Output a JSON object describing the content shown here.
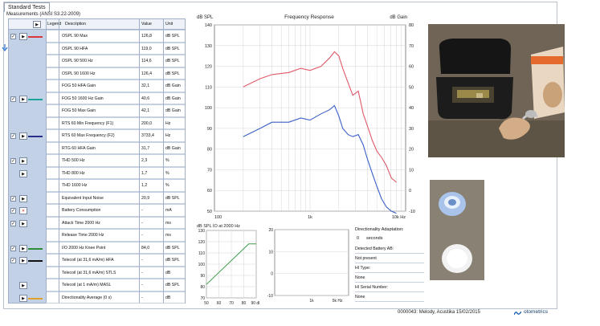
{
  "tab_label": "Standard Tests",
  "panel_title": "Measurements (ANSI S3.22-2009)",
  "table": {
    "headers": {
      "legend": "Legend",
      "description": "Description",
      "value": "Value",
      "unit": "Unit"
    },
    "rows": [
      {
        "desc": "OSPL 90 Max",
        "value": "126,8",
        "unit": "dB SPL",
        "checked": true,
        "legend": "#d9363e",
        "icon": "play"
      },
      {
        "desc": "OSPL 90 HFA",
        "value": "119,0",
        "unit": "dB SPL",
        "checked": false,
        "legend": "",
        "icon": ""
      },
      {
        "desc": "OSPL 90 500 Hz",
        "value": "114,6",
        "unit": "dB SPL",
        "checked": false,
        "legend": "",
        "icon": ""
      },
      {
        "desc": "OSPL 90 1600 Hz",
        "value": "126,4",
        "unit": "dB SPL",
        "checked": false,
        "legend": "",
        "icon": ""
      },
      {
        "desc": "FOG 50 HFA Gain",
        "value": "32,1",
        "unit": "dB Gain",
        "checked": false,
        "legend": "",
        "icon": ""
      },
      {
        "desc": "FOG 50 1600 Hz Gain",
        "value": "40,6",
        "unit": "dB Gain",
        "checked": true,
        "legend": "#1aa39a",
        "icon": "play"
      },
      {
        "desc": "FOG 50 Max Gain",
        "value": "42,1",
        "unit": "dB Gain",
        "checked": false,
        "legend": "",
        "icon": ""
      },
      {
        "desc": "RTS 60 Min Frequency (F1)",
        "value": "200,0",
        "unit": "Hz",
        "checked": false,
        "legend": "",
        "icon": ""
      },
      {
        "desc": "RTS 60 Max Frequency (F2)",
        "value": "3733,4",
        "unit": "Hz",
        "checked": true,
        "legend": "#2b2f8c",
        "icon": "play"
      },
      {
        "desc": "RTG 60 HFA Gain",
        "value": "31,7",
        "unit": "dB Gain",
        "checked": false,
        "legend": "",
        "icon": ""
      },
      {
        "desc": "THD 500 Hz",
        "value": "2,3",
        "unit": "%",
        "checked": true,
        "legend": "",
        "icon": "play"
      },
      {
        "desc": "THD 800 Hz",
        "value": "1,7",
        "unit": "%",
        "checked": false,
        "legend": "",
        "icon": "play"
      },
      {
        "desc": "THD 1600 Hz",
        "value": "1,2",
        "unit": "%",
        "checked": false,
        "legend": "",
        "icon": ""
      },
      {
        "desc": "Equivalent Input Noise",
        "value": "20,9",
        "unit": "dB SPL",
        "checked": true,
        "legend": "",
        "icon": "play"
      },
      {
        "desc": "Battery Consumption",
        "value": "-",
        "unit": "mA",
        "checked": true,
        "legend": "",
        "icon": "stop"
      },
      {
        "desc": "Attack Time 2000 Hz",
        "value": "-",
        "unit": "ms",
        "checked": true,
        "legend": "",
        "icon": "play"
      },
      {
        "desc": "Release Time 2000 Hz",
        "value": "-",
        "unit": "ms",
        "checked": false,
        "legend": "",
        "icon": ""
      },
      {
        "desc": "I/O 2000 Hz Knee Point",
        "value": "84,0",
        "unit": "dB SPL",
        "checked": true,
        "legend": "#2e8b3a",
        "icon": "play"
      },
      {
        "desc": "Telecoil (at 31,6 mA/m) HFA",
        "value": "-",
        "unit": "dB SPL",
        "checked": true,
        "legend": "#111111",
        "icon": "play"
      },
      {
        "desc": "Telecoil (at 31,6 mA/m) STLS",
        "value": "-",
        "unit": "dB",
        "checked": false,
        "legend": "",
        "icon": ""
      },
      {
        "desc": "Telecoil (at 1 mA/m) MASL",
        "value": "-",
        "unit": "dB SPL",
        "checked": false,
        "legend": "",
        "icon": "play"
      },
      {
        "desc": "Directionality Average (0 s)",
        "value": "-",
        "unit": "dB",
        "checked": false,
        "legend": "#e0a02a",
        "icon": "play"
      }
    ]
  },
  "freq_chart": {
    "title": "Frequency Response",
    "left_unit": "dB SPL",
    "right_unit": "dB Gain",
    "x_ticks": [
      "100",
      "1k",
      "10k Hz"
    ]
  },
  "chart_data": [
    {
      "type": "line",
      "title": "Frequency Response",
      "ylabel": "dB SPL",
      "y2label": "dB Gain",
      "xscale": "log",
      "xlim": [
        100,
        10000
      ],
      "ylim": [
        50,
        140
      ],
      "y2lim": [
        -10,
        80
      ],
      "x_tick_labels": [
        "100",
        "1k",
        "10k Hz"
      ],
      "y_ticks": [
        50,
        60,
        70,
        80,
        90,
        100,
        110,
        120,
        130,
        140
      ],
      "y2_ticks": [
        -10,
        0,
        10,
        20,
        30,
        40,
        50,
        60,
        70,
        80
      ],
      "grid": true,
      "series": [
        {
          "color": "#e05a6a",
          "x": [
            200,
            300,
            400,
            600,
            800,
            1000,
            1300,
            1600,
            1800,
            2000,
            2200,
            2500,
            2800,
            3200,
            3600,
            4000,
            4500,
            5000,
            5600,
            6300,
            7100,
            8000
          ],
          "y": [
            110,
            114,
            116,
            117,
            119,
            118,
            120,
            124,
            127,
            125,
            119,
            112,
            106,
            108,
            97,
            91,
            84,
            79,
            76,
            72,
            66,
            64
          ]
        },
        {
          "color": "#3a5fc8",
          "x": [
            200,
            300,
            400,
            600,
            800,
            1000,
            1300,
            1600,
            1800,
            2000,
            2200,
            2500,
            2800,
            3200,
            3600,
            4000,
            4500,
            5000,
            5600,
            6300,
            7100,
            8000
          ],
          "y": [
            86,
            90,
            93,
            93,
            95,
            94,
            97,
            99,
            101,
            96,
            90,
            87,
            86,
            87,
            82,
            75,
            68,
            62,
            56,
            52,
            50,
            49
          ]
        }
      ]
    },
    {
      "type": "line",
      "title": "dB SPL IO at 2000 Hz",
      "xlim": [
        50,
        90
      ],
      "ylim": [
        70,
        130
      ],
      "x_tick_labels": [
        "50",
        "60",
        "70",
        "80",
        "90 dB"
      ],
      "y_ticks": [
        70,
        80,
        90,
        100,
        110,
        120,
        130
      ],
      "grid": true,
      "series": [
        {
          "color": "#3a9a4a",
          "x": [
            50,
            84,
            90
          ],
          "y": [
            82,
            118,
            118
          ]
        }
      ]
    },
    {
      "type": "line",
      "title": "",
      "xscale": "log",
      "xlim": [
        100,
        10000
      ],
      "ylim": [
        -10,
        20
      ],
      "x_tick_labels": [
        "1k",
        "5k Hz"
      ],
      "y_ticks": [
        -10,
        0,
        10,
        20
      ],
      "grid": true,
      "series": []
    }
  ],
  "io_chart": {
    "title": "dB SPL IO at 2000 Hz"
  },
  "info": {
    "directionality_label": "Directionality Adaptation:",
    "directionality_value": "0",
    "directionality_unit": "seconds",
    "battery_label": "Detected Battery AB:",
    "battery_value": "Not present",
    "hi_type_label": "HI Type:",
    "hi_type_value": "None",
    "serial_label": "HI Serial Number:",
    "serial_value": "None"
  },
  "status": "0000043: Melody, Acustika   15/02/2015",
  "logo": "otometrics"
}
